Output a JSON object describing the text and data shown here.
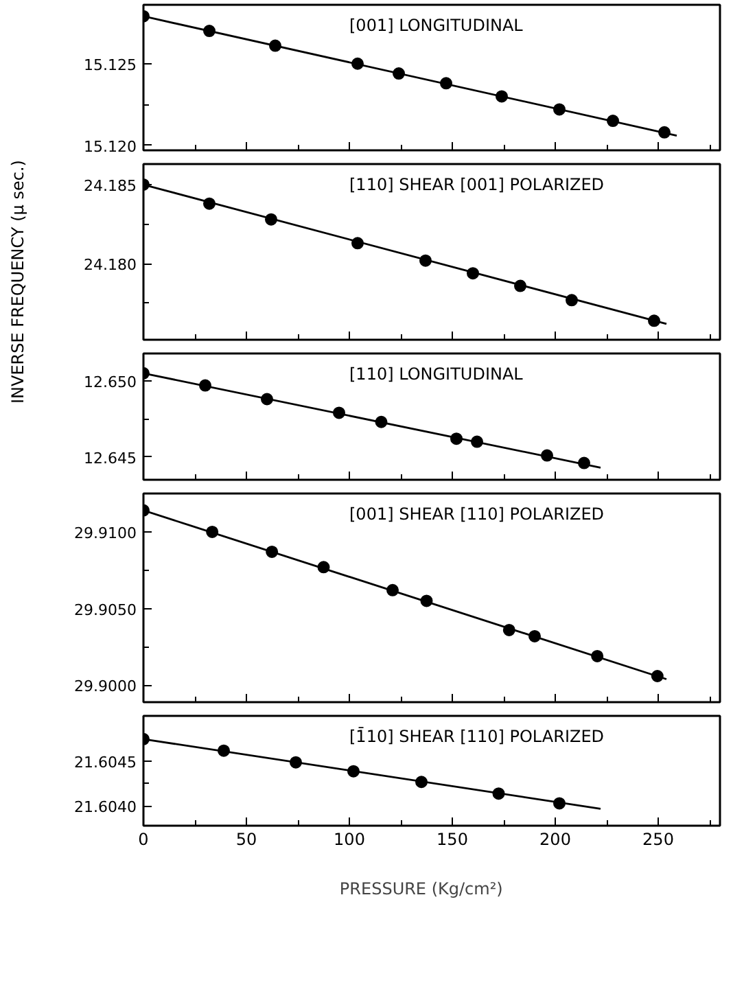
{
  "chart_data": [
    {
      "type": "scatter",
      "annotations": [
        "[001]   LONGITUDINAL"
      ],
      "xlim": [
        0,
        280
      ],
      "xticks": [
        0,
        {
          "value": 25,
          "label": null
        },
        50,
        {
          "value": 75,
          "label": null
        },
        100,
        {
          "value": 125,
          "label": null
        },
        150,
        {
          "value": 175,
          "label": null
        },
        200,
        {
          "value": 225,
          "label": null
        },
        250,
        {
          "value": 275,
          "label": null
        }
      ],
      "ylim": [
        15.1197,
        15.1286
      ],
      "yticks": [
        {
          "value": 15.12,
          "label": "15.120"
        },
        {
          "value": 15.1225,
          "label": null
        },
        15.125
      ],
      "tick_labels": "y",
      "series": [
        {
          "color": "#000000",
          "marker": "circle",
          "x": [
            0,
            32,
            64,
            104,
            124,
            147,
            174,
            202,
            228,
            253
          ],
          "values": [
            15.1279,
            15.127,
            15.1261,
            15.125,
            15.1244,
            15.1238,
            15.123,
            15.1222,
            15.1215,
            15.1208
          ]
        },
        {
          "type": "line",
          "color": "#000000",
          "x": [
            0,
            259
          ],
          "values": [
            15.1279,
            15.1206
          ]
        }
      ]
    },
    {
      "type": "scatter",
      "annotations": [
        "[110]   SHEAR [001]   POLARIZED"
      ],
      "xlim": [
        0,
        280
      ],
      "xticks": [
        0,
        {
          "value": 25,
          "label": null
        },
        50,
        {
          "value": 75,
          "label": null
        },
        100,
        {
          "value": 125,
          "label": null
        },
        150,
        {
          "value": 175,
          "label": null
        },
        200,
        {
          "value": 225,
          "label": null
        },
        250,
        {
          "value": 275,
          "label": null
        }
      ],
      "ylim": [
        24.1752,
        24.1863
      ],
      "yticks": [
        {
          "value": 24.1775,
          "label": null
        },
        {
          "value": 24.18,
          "label": "24.180"
        },
        {
          "value": 24.1825,
          "label": null
        },
        24.185
      ],
      "tick_labels": "y",
      "series": [
        {
          "color": "#000000",
          "marker": "circle",
          "x": [
            0,
            32,
            62,
            104,
            137,
            160,
            183,
            208,
            248
          ],
          "values": [
            24.185,
            24.1838,
            24.1828,
            24.1813,
            24.1802,
            24.1794,
            24.1786,
            24.1777,
            24.1764
          ]
        },
        {
          "type": "line",
          "color": "#000000",
          "x": [
            0,
            254
          ],
          "values": [
            24.185,
            24.1762
          ]
        }
      ]
    },
    {
      "type": "scatter",
      "annotations": [
        "[110]   LONGITUDINAL"
      ],
      "ylabel": "INVERSE   FREQUENCY    (μ sec.)",
      "xlim": [
        0,
        280
      ],
      "xticks": [
        0,
        {
          "value": 25,
          "label": null
        },
        50,
        {
          "value": 75,
          "label": null
        },
        100,
        {
          "value": 125,
          "label": null
        },
        150,
        {
          "value": 175,
          "label": null
        },
        200,
        {
          "value": 225,
          "label": null
        },
        250,
        {
          "value": 275,
          "label": null
        }
      ],
      "ylim": [
        12.6435,
        12.6518
      ],
      "yticks": [
        12.645,
        {
          "value": 12.6475,
          "label": null
        },
        {
          "value": 12.65,
          "label": "12.650"
        }
      ],
      "tick_labels": "y",
      "series": [
        {
          "color": "#000000",
          "marker": "circle",
          "x": [
            0,
            30,
            60,
            95,
            115.5,
            152,
            162,
            196,
            214
          ],
          "values": [
            12.6505,
            12.6497,
            12.6488,
            12.6479,
            12.6473,
            12.6462,
            12.646,
            12.6451,
            12.6446
          ]
        },
        {
          "type": "line",
          "color": "#000000",
          "x": [
            0,
            222
          ],
          "values": [
            12.6505,
            12.6443
          ]
        }
      ]
    },
    {
      "type": "scatter",
      "annotations": [
        "[001]   SHEAR  [110]   POLARIZED"
      ],
      "xlim": [
        0,
        280
      ],
      "xticks": [
        0,
        {
          "value": 25,
          "label": null
        },
        50,
        {
          "value": 75,
          "label": null
        },
        100,
        {
          "value": 125,
          "label": null
        },
        150,
        {
          "value": 175,
          "label": null
        },
        200,
        {
          "value": 225,
          "label": null
        },
        250,
        {
          "value": 275,
          "label": null
        }
      ],
      "ylim": [
        29.8989,
        29.9125
      ],
      "yticks": [
        {
          "value": 29.9,
          "label": "29.9000"
        },
        {
          "value": 29.9025,
          "label": null
        },
        {
          "value": 29.905,
          "label": "29.9050"
        },
        {
          "value": 29.9075,
          "label": null
        },
        {
          "value": 29.91,
          "label": "29.9100"
        }
      ],
      "tick_labels": "y",
      "series": [
        {
          "color": "#000000",
          "marker": "circle",
          "x": [
            0,
            33.4,
            62.4,
            87.5,
            121,
            137.5,
            177.6,
            190,
            220.4,
            249.6
          ],
          "values": [
            29.9114,
            29.91,
            29.9087,
            29.9077,
            29.9062,
            29.9055,
            29.9036,
            29.9032,
            29.9019,
            29.9006
          ]
        },
        {
          "type": "line",
          "color": "#000000",
          "x": [
            0,
            254
          ],
          "values": [
            29.9114,
            29.9004
          ]
        }
      ]
    },
    {
      "type": "scatter",
      "annotations": [
        "[1̄10]   SHEAR   [110]   POLARIZED"
      ],
      "xlabel": "PRESSURE     (Kg/cm²)",
      "xlim": [
        0,
        280
      ],
      "xticks": [
        0,
        {
          "value": 25,
          "label": null
        },
        50,
        {
          "value": 75,
          "label": null
        },
        100,
        {
          "value": 125,
          "label": null
        },
        150,
        {
          "value": 175,
          "label": null
        },
        200,
        {
          "value": 225,
          "label": null
        },
        250,
        {
          "value": 275,
          "label": null
        }
      ],
      "ylim": [
        21.60378,
        21.60501
      ],
      "yticks": [
        {
          "value": 21.604,
          "label": "21.6040"
        },
        {
          "value": 21.60425,
          "label": null
        },
        21.6045
      ],
      "series": [
        {
          "color": "#000000",
          "marker": "circle",
          "x": [
            0,
            39,
            74,
            102,
            135,
            172.5,
            202
          ],
          "values": [
            21.60475,
            21.60462,
            21.60449,
            21.60439,
            21.60427,
            21.60414,
            21.60403
          ]
        },
        {
          "type": "line",
          "color": "#000000",
          "x": [
            0,
            222
          ],
          "values": [
            21.60475,
            21.60397
          ]
        }
      ]
    }
  ]
}
